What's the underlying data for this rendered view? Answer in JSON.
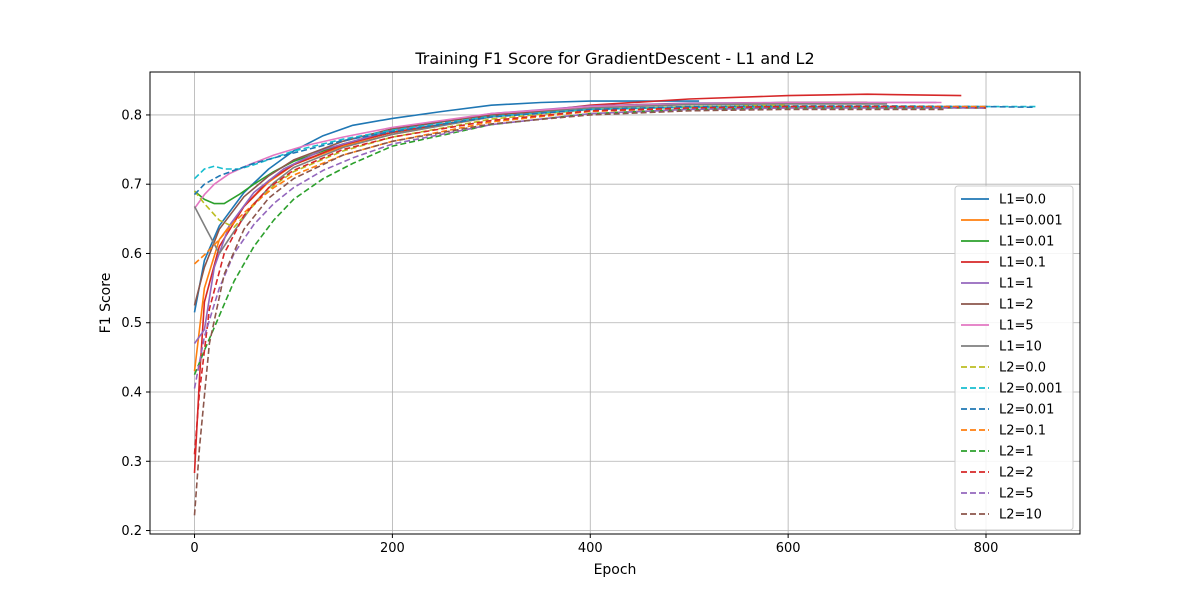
{
  "chart_data": {
    "type": "line",
    "title": "Training F1 Score for GradientDescent - L1 and L2",
    "xlabel": "Epoch",
    "ylabel": "F1 Score",
    "xlim": [
      -45,
      895
    ],
    "ylim": [
      0.195,
      0.862
    ],
    "xticks": [
      0,
      200,
      400,
      600,
      800
    ],
    "yticks": [
      0.2,
      0.3,
      0.4,
      0.5,
      0.6,
      0.7,
      0.8
    ],
    "grid": true,
    "legend": "right",
    "series": [
      {
        "name": "L1=0.0",
        "color": "#1f77b4",
        "dash": "solid",
        "x": [
          0,
          10,
          25,
          50,
          75,
          100,
          130,
          160,
          200,
          250,
          300,
          350,
          400,
          450,
          510
        ],
        "y": [
          0.515,
          0.59,
          0.64,
          0.688,
          0.722,
          0.748,
          0.77,
          0.785,
          0.795,
          0.805,
          0.814,
          0.818,
          0.82,
          0.82,
          0.82
        ]
      },
      {
        "name": "L1=0.001",
        "color": "#ff7f0e",
        "dash": "solid",
        "x": [
          0,
          10,
          25,
          50,
          75,
          100,
          150,
          200,
          250,
          300,
          350,
          400,
          450,
          500,
          560
        ],
        "y": [
          0.43,
          0.55,
          0.62,
          0.668,
          0.703,
          0.728,
          0.755,
          0.772,
          0.785,
          0.797,
          0.806,
          0.812,
          0.815,
          0.816,
          0.817
        ]
      },
      {
        "name": "L1=0.01",
        "color": "#2ca02c",
        "dash": "solid",
        "x": [
          0,
          10,
          20,
          30,
          45,
          60,
          80,
          100,
          150,
          200,
          300,
          400,
          500,
          600,
          680
        ],
        "y": [
          0.69,
          0.678,
          0.672,
          0.672,
          0.685,
          0.7,
          0.718,
          0.733,
          0.758,
          0.775,
          0.798,
          0.812,
          0.816,
          0.818,
          0.818
        ]
      },
      {
        "name": "L1=0.1",
        "color": "#d62728",
        "dash": "solid",
        "x": [
          0,
          5,
          10,
          25,
          50,
          75,
          100,
          150,
          200,
          300,
          400,
          500,
          600,
          680,
          775
        ],
        "y": [
          0.283,
          0.42,
          0.53,
          0.61,
          0.668,
          0.705,
          0.728,
          0.757,
          0.775,
          0.798,
          0.814,
          0.823,
          0.828,
          0.83,
          0.828
        ]
      },
      {
        "name": "L1=1",
        "color": "#9467bd",
        "dash": "solid",
        "x": [
          0,
          10,
          20,
          35,
          60,
          90,
          130,
          200,
          300,
          400,
          500,
          600,
          700,
          750
        ],
        "y": [
          0.47,
          0.49,
          0.58,
          0.64,
          0.688,
          0.722,
          0.75,
          0.778,
          0.802,
          0.813,
          0.817,
          0.818,
          0.818,
          0.818
        ]
      },
      {
        "name": "L1=2",
        "color": "#8c564b",
        "dash": "solid",
        "x": [
          0,
          10,
          25,
          50,
          75,
          100,
          150,
          200,
          300,
          400,
          500,
          600,
          680
        ],
        "y": [
          0.525,
          0.58,
          0.635,
          0.682,
          0.712,
          0.735,
          0.762,
          0.78,
          0.8,
          0.812,
          0.816,
          0.818,
          0.818
        ]
      },
      {
        "name": "L1=5",
        "color": "#e377c2",
        "dash": "solid",
        "x": [
          0,
          10,
          20,
          35,
          55,
          80,
          110,
          150,
          200,
          300,
          400,
          500,
          600,
          700,
          755
        ],
        "y": [
          0.665,
          0.685,
          0.7,
          0.715,
          0.728,
          0.742,
          0.755,
          0.768,
          0.782,
          0.802,
          0.812,
          0.816,
          0.818,
          0.818,
          0.818
        ]
      },
      {
        "name": "L1=10",
        "color": "#7f7f7f",
        "dash": "solid",
        "x": [
          0,
          12,
          25,
          40,
          60,
          80,
          100,
          150,
          200,
          300,
          400,
          500,
          600,
          700
        ],
        "y": [
          0.668,
          0.635,
          0.6,
          0.632,
          0.672,
          0.702,
          0.724,
          0.753,
          0.772,
          0.797,
          0.81,
          0.815,
          0.816,
          0.816
        ]
      },
      {
        "name": "L2=0.0",
        "color": "#bcbd22",
        "dash": "dashed",
        "x": [
          0,
          10,
          25,
          40,
          60,
          80,
          100,
          150,
          200,
          300,
          400,
          500,
          600
        ],
        "y": [
          0.69,
          0.672,
          0.648,
          0.638,
          0.67,
          0.698,
          0.718,
          0.748,
          0.768,
          0.794,
          0.808,
          0.812,
          0.814
        ]
      },
      {
        "name": "L2=0.001",
        "color": "#17becf",
        "dash": "dashed",
        "x": [
          0,
          10,
          20,
          30,
          45,
          60,
          80,
          100,
          150,
          200,
          300,
          400,
          500,
          600,
          700,
          850
        ],
        "y": [
          0.708,
          0.722,
          0.726,
          0.722,
          0.722,
          0.728,
          0.738,
          0.748,
          0.765,
          0.778,
          0.798,
          0.808,
          0.811,
          0.812,
          0.812,
          0.812
        ]
      },
      {
        "name": "L2=0.01",
        "color": "#1f77b4",
        "dash": "dashed",
        "x": [
          0,
          10,
          25,
          40,
          60,
          80,
          100,
          150,
          200,
          300,
          400,
          500,
          600,
          700,
          800,
          850
        ],
        "y": [
          0.685,
          0.7,
          0.712,
          0.72,
          0.73,
          0.738,
          0.745,
          0.763,
          0.776,
          0.797,
          0.808,
          0.812,
          0.813,
          0.813,
          0.812,
          0.811
        ]
      },
      {
        "name": "L2=0.1",
        "color": "#ff7f0e",
        "dash": "dashed",
        "x": [
          0,
          10,
          25,
          40,
          60,
          80,
          100,
          150,
          200,
          300,
          400,
          500,
          600,
          700,
          800
        ],
        "y": [
          0.585,
          0.598,
          0.62,
          0.645,
          0.672,
          0.695,
          0.713,
          0.742,
          0.762,
          0.79,
          0.805,
          0.81,
          0.812,
          0.812,
          0.812
        ]
      },
      {
        "name": "L2=1",
        "color": "#2ca02c",
        "dash": "dashed",
        "x": [
          0,
          10,
          25,
          40,
          60,
          80,
          100,
          130,
          160,
          200,
          300,
          400,
          500,
          600,
          700,
          800
        ],
        "y": [
          0.425,
          0.46,
          0.51,
          0.56,
          0.61,
          0.648,
          0.678,
          0.708,
          0.73,
          0.755,
          0.786,
          0.802,
          0.808,
          0.81,
          0.81,
          0.81
        ]
      },
      {
        "name": "L2=2",
        "color": "#d62728",
        "dash": "dashed",
        "x": [
          0,
          5,
          15,
          30,
          50,
          75,
          100,
          150,
          200,
          300,
          400,
          500,
          600,
          700,
          800
        ],
        "y": [
          0.31,
          0.4,
          0.52,
          0.6,
          0.655,
          0.695,
          0.72,
          0.75,
          0.768,
          0.792,
          0.806,
          0.81,
          0.812,
          0.812,
          0.81
        ]
      },
      {
        "name": "L2=5",
        "color": "#9467bd",
        "dash": "dashed",
        "x": [
          0,
          10,
          25,
          40,
          60,
          80,
          100,
          130,
          160,
          200,
          300,
          400,
          500,
          600,
          700,
          800
        ],
        "y": [
          0.405,
          0.48,
          0.55,
          0.6,
          0.642,
          0.672,
          0.695,
          0.72,
          0.738,
          0.758,
          0.786,
          0.802,
          0.808,
          0.81,
          0.81,
          0.81
        ]
      },
      {
        "name": "L2=10",
        "color": "#8c564b",
        "dash": "dashed",
        "x": [
          0,
          5,
          15,
          30,
          50,
          75,
          100,
          150,
          200,
          300,
          400,
          500,
          600,
          700,
          760
        ],
        "y": [
          0.222,
          0.32,
          0.47,
          0.57,
          0.635,
          0.68,
          0.708,
          0.742,
          0.762,
          0.787,
          0.8,
          0.806,
          0.808,
          0.808,
          0.808
        ]
      }
    ]
  }
}
